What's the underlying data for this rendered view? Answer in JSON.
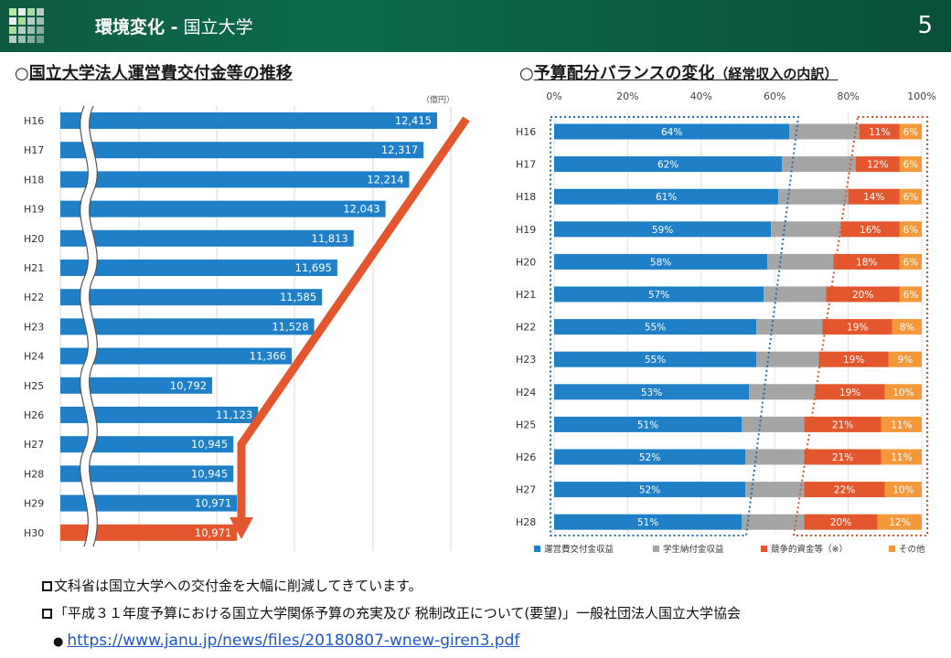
{
  "header": {
    "title_bold": "環境変化 -",
    "title_sub": "国立大学",
    "page_number": "5",
    "bg_color": "#0c6b4c"
  },
  "left_section": {
    "marker": "○",
    "title": "国立大学法人運営費交付金等の推移",
    "unit": "（億円）"
  },
  "right_section": {
    "marker": "○",
    "title": "予算配分バランスの変化",
    "title_suffix": "（経常収入の内訳）"
  },
  "chart_data": [
    {
      "type": "bar",
      "orientation": "horizontal",
      "categories": [
        "H16",
        "H17",
        "H18",
        "H19",
        "H20",
        "H21",
        "H22",
        "H23",
        "H24",
        "H25",
        "H26",
        "H27",
        "H28",
        "H29",
        "H30"
      ],
      "values": [
        12415,
        12317,
        12214,
        12043,
        11813,
        11695,
        11585,
        11528,
        11366,
        10792,
        11123,
        10945,
        10945,
        10971,
        10971
      ],
      "value_labels": [
        "12,415",
        "12,317",
        "12,214",
        "12,043",
        "11,813",
        "11,695",
        "11,585",
        "11,528",
        "11,366",
        "10,792",
        "11,123",
        "10,945",
        "10,945",
        "10,971",
        "10,971"
      ],
      "colors": {
        "default": "#1f80c8",
        "highlight": "#e4572e",
        "arrow": "#e4572e"
      },
      "highlight_index": 14,
      "axis_break": true,
      "title": "",
      "ylabel": ""
    },
    {
      "type": "bar",
      "stacked": "percent",
      "orientation": "horizontal",
      "categories": [
        "H16",
        "H17",
        "H18",
        "H19",
        "H20",
        "H21",
        "H22",
        "H23",
        "H24",
        "H25",
        "H26",
        "H27",
        "H28"
      ],
      "x_ticks": [
        "0%",
        "20%",
        "40%",
        "60%",
        "80%",
        "100%"
      ],
      "xlim": [
        0,
        100
      ],
      "series": [
        {
          "name": "運営費交付金収益",
          "color": "#1f80c8",
          "values": [
            64,
            62,
            61,
            59,
            58,
            57,
            55,
            55,
            53,
            51,
            52,
            52,
            51
          ],
          "labels": [
            "64%",
            "62%",
            "61%",
            "59%",
            "58%",
            "57%",
            "55%",
            "55%",
            "53%",
            "51%",
            "52%",
            "52%",
            "51%"
          ]
        },
        {
          "name": "学生納付金収益",
          "color": "#a5a5a5",
          "values": [
            19,
            20,
            19,
            19,
            18,
            17,
            18,
            17,
            18,
            17,
            16,
            16,
            17
          ],
          "labels": [
            "",
            "",
            "",
            "",
            "",
            "",
            "",
            "",
            "",
            "",
            "",
            "",
            ""
          ]
        },
        {
          "name": "競争的資金等（※）",
          "color": "#e4572e",
          "values": [
            11,
            12,
            14,
            16,
            18,
            20,
            19,
            19,
            19,
            21,
            21,
            22,
            20
          ],
          "labels": [
            "11%",
            "12%",
            "14%",
            "16%",
            "18%",
            "20%",
            "19%",
            "19%",
            "19%",
            "21%",
            "21%",
            "22%",
            "20%"
          ]
        },
        {
          "name": "その他",
          "color": "#f4993a",
          "values": [
            6,
            6,
            6,
            6,
            6,
            6,
            8,
            9,
            10,
            11,
            11,
            10,
            12
          ],
          "labels": [
            "6%",
            "6%",
            "6%",
            "6%",
            "6%",
            "6%",
            "8%",
            "9%",
            "10%",
            "11%",
            "11%",
            "10%",
            "12%"
          ]
        }
      ],
      "legend_position": "bottom",
      "grid": true
    }
  ],
  "notes": [
    {
      "text": "文科省は国立大学への交付金を大幅に削減してきています。"
    },
    {
      "text": "「平成３１年度予算における国立大学関係予算の充実及び 税制改正について(要望)」一般社団法人国立大学協会"
    }
  ],
  "link": {
    "bullet": "●",
    "text": "https://www.janu.jp/news/files/20180807-wnew-giren3.pdf"
  }
}
